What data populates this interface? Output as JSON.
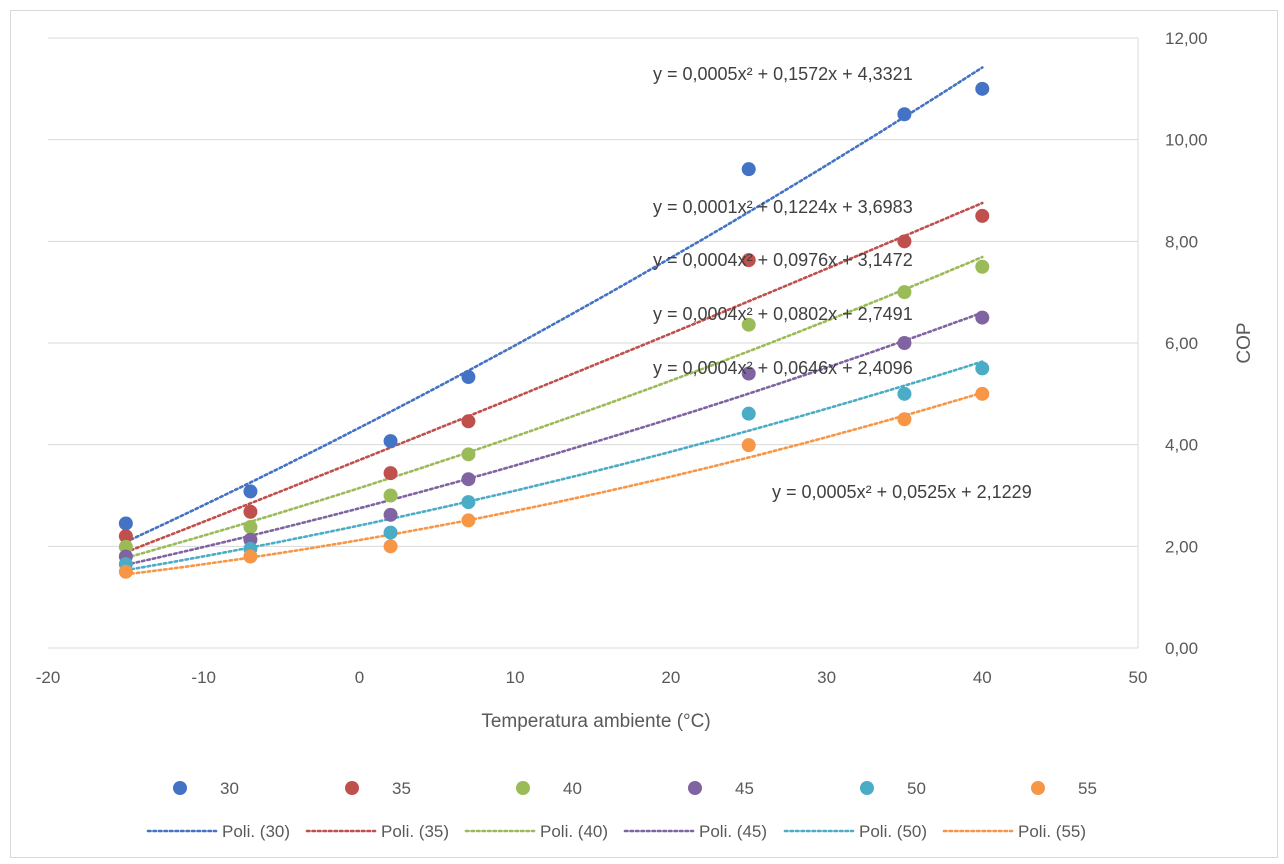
{
  "chart_data": {
    "type": "scatter",
    "title": "",
    "xlabel": "Temperatura ambiente (°C)",
    "ylabel": "COP",
    "xlim": [
      -20,
      50
    ],
    "ylim": [
      0,
      12
    ],
    "x_ticks": [
      "-20",
      "-10",
      "0",
      "10",
      "20",
      "30",
      "40",
      "50"
    ],
    "y_ticks": [
      "0,00",
      "2,00",
      "4,00",
      "6,00",
      "8,00",
      "10,00",
      "12,00"
    ],
    "y_axis_side": "right",
    "grid": "horizontal",
    "legend_position": "bottom",
    "x": [
      -15,
      -7,
      2,
      7,
      25,
      35,
      40
    ],
    "series": [
      {
        "name": "30",
        "color": "#4472C4",
        "values": [
          2.45,
          3.08,
          4.07,
          5.33,
          9.42,
          10.5,
          11.0
        ],
        "trend_name": "Poli. (30)",
        "trend": {
          "a": 0.0005,
          "b": 0.1572,
          "c": 4.3321
        },
        "equation": "y = 0,0005x² + 0,1572x + 4,3321"
      },
      {
        "name": "35",
        "color": "#C0504D",
        "values": [
          2.2,
          2.68,
          3.44,
          4.46,
          7.63,
          8.0,
          8.5
        ],
        "trend_name": "Poli. (35)",
        "trend": {
          "a": 0.0001,
          "b": 0.1224,
          "c": 3.6983
        },
        "equation": "y = 0,0001x² + 0,1224x + 3,6983"
      },
      {
        "name": "40",
        "color": "#9BBB59",
        "values": [
          1.99,
          2.38,
          3.0,
          3.81,
          6.36,
          7.0,
          7.5
        ],
        "trend_name": "Poli. (40)",
        "trend": {
          "a": 0.0004,
          "b": 0.0976,
          "c": 3.1472
        },
        "equation": "y = 0,0004x² + 0,0976x + 3,1472"
      },
      {
        "name": "45",
        "color": "#8064A2",
        "values": [
          1.8,
          2.13,
          2.62,
          3.32,
          5.4,
          6.0,
          6.5
        ],
        "trend_name": "Poli. (45)",
        "trend": {
          "a": 0.0004,
          "b": 0.0802,
          "c": 2.7491
        },
        "equation": "y = 0,0004x² + 0,0802x + 2,7491"
      },
      {
        "name": "50",
        "color": "#4BACC6",
        "values": [
          1.65,
          1.95,
          2.27,
          2.87,
          4.61,
          5.0,
          5.5
        ],
        "trend_name": "Poli. (50)",
        "trend": {
          "a": 0.0004,
          "b": 0.0646,
          "c": 2.4096
        },
        "equation": "y = 0,0004x² + 0,0646x + 2,4096"
      },
      {
        "name": "55",
        "color": "#F79646",
        "values": [
          1.5,
          1.8,
          2.0,
          2.51,
          3.99,
          4.5,
          5.0
        ],
        "trend_name": "Poli. (55)",
        "trend": {
          "a": 0.0005,
          "b": 0.0525,
          "c": 2.1229
        },
        "equation": "y = 0,0005x² + 0,0525x + 2,1229"
      }
    ]
  }
}
